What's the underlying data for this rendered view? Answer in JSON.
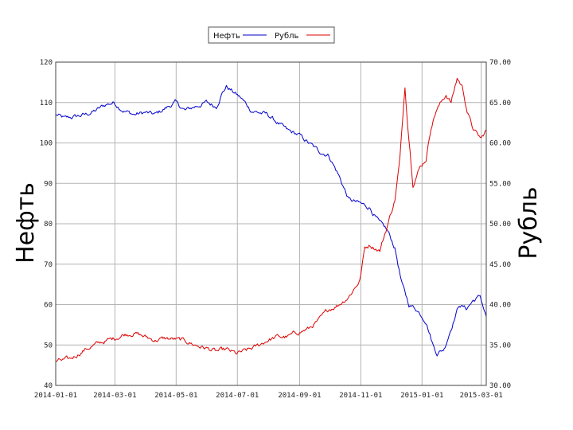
{
  "chart_data": {
    "type": "line",
    "title": "",
    "xlabel": "",
    "ylabel_left": "Нефть",
    "ylabel_right": "Рубль",
    "x_ticks": [
      "2014-01-01",
      "2014-03-01",
      "2014-05-01",
      "2014-07-01",
      "2014-09-01",
      "2014-11-01",
      "2015-01-01",
      "2015-03-01"
    ],
    "xlim": [
      "2014-01-01",
      "2015-03-06"
    ],
    "ylim_left": [
      40,
      120
    ],
    "y_ticks_left": [
      "40",
      "50",
      "60",
      "70",
      "80",
      "90",
      "100",
      "110",
      "120"
    ],
    "ylim_right": [
      30,
      70
    ],
    "y_ticks_right": [
      "30.00",
      "35.00",
      "40.00",
      "45.00",
      "50.00",
      "55.00",
      "60.00",
      "65.00",
      "70.00"
    ],
    "grid": true,
    "legend": {
      "placement": "top-center"
    },
    "colors": {
      "oil": "#0000cc",
      "ruble": "#dd0000",
      "grid": "#b4b4b4"
    },
    "series": [
      {
        "name": "Нефть",
        "axis": "left",
        "color": "#0000cc",
        "points": [
          [
            "2014-01-01",
            107
          ],
          [
            "2014-01-10",
            106
          ],
          [
            "2014-01-20",
            106.5
          ],
          [
            "2014-01-31",
            107
          ],
          [
            "2014-02-10",
            108
          ],
          [
            "2014-02-20",
            109.5
          ],
          [
            "2014-02-28",
            110
          ],
          [
            "2014-03-10",
            108
          ],
          [
            "2014-03-20",
            107
          ],
          [
            "2014-03-31",
            107.5
          ],
          [
            "2014-04-10",
            107
          ],
          [
            "2014-04-20",
            108.5
          ],
          [
            "2014-04-30",
            110
          ],
          [
            "2014-05-10",
            108
          ],
          [
            "2014-05-20",
            109
          ],
          [
            "2014-05-31",
            110
          ],
          [
            "2014-06-10",
            109
          ],
          [
            "2014-06-15",
            112
          ],
          [
            "2014-06-20",
            114
          ],
          [
            "2014-06-25",
            113
          ],
          [
            "2014-07-05",
            111
          ],
          [
            "2014-07-15",
            108
          ],
          [
            "2014-07-31",
            107
          ],
          [
            "2014-08-10",
            105
          ],
          [
            "2014-08-20",
            103
          ],
          [
            "2014-08-31",
            102
          ],
          [
            "2014-09-10",
            100
          ],
          [
            "2014-09-20",
            98
          ],
          [
            "2014-09-30",
            97
          ],
          [
            "2014-10-10",
            92
          ],
          [
            "2014-10-20",
            86
          ],
          [
            "2014-10-31",
            85
          ],
          [
            "2014-11-10",
            84
          ],
          [
            "2014-11-20",
            80
          ],
          [
            "2014-11-25",
            79
          ],
          [
            "2014-11-28",
            78
          ],
          [
            "2014-12-05",
            74
          ],
          [
            "2014-12-12",
            65
          ],
          [
            "2014-12-19",
            60
          ],
          [
            "2014-12-26",
            59
          ],
          [
            "2015-01-05",
            56
          ],
          [
            "2015-01-12",
            50
          ],
          [
            "2015-01-16",
            48
          ],
          [
            "2015-01-23",
            49
          ],
          [
            "2015-01-31",
            55
          ],
          [
            "2015-02-07",
            60
          ],
          [
            "2015-02-14",
            59
          ],
          [
            "2015-02-21",
            61
          ],
          [
            "2015-02-28",
            62
          ],
          [
            "2015-03-06",
            57
          ]
        ]
      },
      {
        "name": "Рубль",
        "axis": "right",
        "color": "#dd0000",
        "points": [
          [
            "2014-01-01",
            33
          ],
          [
            "2014-01-15",
            33.2
          ],
          [
            "2014-01-31",
            34.5
          ],
          [
            "2014-02-15",
            35.3
          ],
          [
            "2014-02-28",
            35.8
          ],
          [
            "2014-03-10",
            36.3
          ],
          [
            "2014-03-20",
            36.5
          ],
          [
            "2014-03-31",
            36
          ],
          [
            "2014-04-10",
            35.6
          ],
          [
            "2014-04-20",
            35.8
          ],
          [
            "2014-04-30",
            35.7
          ],
          [
            "2014-05-10",
            35.5
          ],
          [
            "2014-05-20",
            35
          ],
          [
            "2014-05-31",
            34.6
          ],
          [
            "2014-06-10",
            34.2
          ],
          [
            "2014-06-20",
            34.4
          ],
          [
            "2014-06-30",
            33.9
          ],
          [
            "2014-07-10",
            34.3
          ],
          [
            "2014-07-20",
            34.8
          ],
          [
            "2014-07-31",
            35.6
          ],
          [
            "2014-08-10",
            36
          ],
          [
            "2014-08-20",
            36
          ],
          [
            "2014-08-31",
            36.6
          ],
          [
            "2014-09-10",
            37
          ],
          [
            "2014-09-20",
            38
          ],
          [
            "2014-09-30",
            39.4
          ],
          [
            "2014-10-10",
            40
          ],
          [
            "2014-10-20",
            41
          ],
          [
            "2014-10-31",
            43
          ],
          [
            "2014-11-05",
            47
          ],
          [
            "2014-11-10",
            47.4
          ],
          [
            "2014-11-20",
            46.7
          ],
          [
            "2014-11-28",
            50
          ],
          [
            "2014-12-05",
            53
          ],
          [
            "2014-12-10",
            58
          ],
          [
            "2014-12-15",
            67
          ],
          [
            "2014-12-18",
            62
          ],
          [
            "2014-12-23",
            55
          ],
          [
            "2014-12-30",
            57
          ],
          [
            "2015-01-05",
            58
          ],
          [
            "2015-01-10",
            62
          ],
          [
            "2015-01-15",
            64
          ],
          [
            "2015-01-20",
            65
          ],
          [
            "2015-01-25",
            66
          ],
          [
            "2015-01-30",
            65
          ],
          [
            "2015-02-05",
            68
          ],
          [
            "2015-02-10",
            67
          ],
          [
            "2015-02-15",
            64
          ],
          [
            "2015-02-20",
            62
          ],
          [
            "2015-02-25",
            61
          ],
          [
            "2015-03-01",
            60.5
          ],
          [
            "2015-03-06",
            61.6
          ]
        ]
      }
    ]
  }
}
